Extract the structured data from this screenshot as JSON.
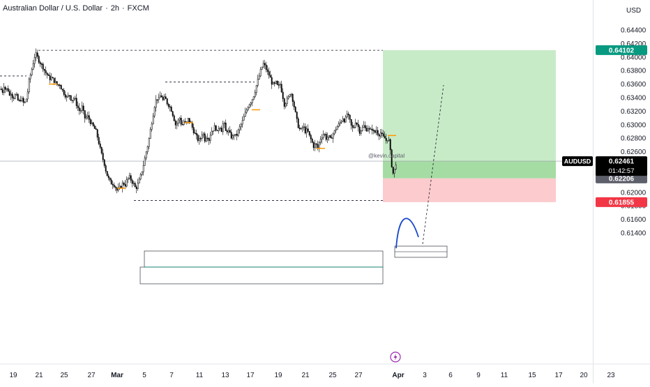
{
  "header": {
    "symbol_name": "Australian Dollar / U.S. Dollar",
    "separator": "·",
    "interval": "2h",
    "exchange": "FXCM"
  },
  "price_scale": {
    "currency": "USD",
    "ticks": [
      "0.64400",
      "0.64200",
      "0.64000",
      "0.63800",
      "0.63600",
      "0.63400",
      "0.63200",
      "0.63000",
      "0.62800",
      "0.62600",
      "0.62400",
      "0.62200",
      "0.62000",
      "0.61800",
      "0.61600",
      "0.61400"
    ],
    "tick_values": [
      0.644,
      0.642,
      0.64,
      0.638,
      0.636,
      0.634,
      0.632,
      0.63,
      0.628,
      0.626,
      0.624,
      0.622,
      0.62,
      0.618,
      0.616,
      0.614
    ]
  },
  "time_axis": {
    "labels": [
      "19",
      "21",
      "25",
      "27",
      "Mar",
      "5",
      "7",
      "11",
      "13",
      "17",
      "19",
      "21",
      "25",
      "27",
      "Apr",
      "3",
      "6",
      "9",
      "11",
      "15",
      "17",
      "20",
      "23"
    ],
    "bold": [
      "Mar",
      "Apr"
    ]
  },
  "badges": {
    "target": {
      "text": "0.64102",
      "value": 0.64102,
      "color": "#089981"
    },
    "current_symbol": {
      "text": "AUDUSD",
      "color": "#000000"
    },
    "current_price": {
      "text": "0.62461",
      "value": 0.62461,
      "color": "#000000"
    },
    "countdown": {
      "text": "01:42:57"
    },
    "entry": {
      "text": "0.62206",
      "value": 0.62206,
      "color": "#5d606b"
    },
    "stop": {
      "text": "0.61855",
      "value": 0.61855,
      "color": "#f23645"
    }
  },
  "watermark": "@kevin.capital",
  "colors": {
    "profit_zone": "#c8ebc7",
    "profit_zone_active": "#a5dca3",
    "loss_zone": "#fccbcd",
    "candle": "#000000",
    "projection_arc": "#1848cc",
    "accent_orange": "#ff9800",
    "events_icon": "#9c27b0"
  },
  "chart_data": {
    "type": "candlestick",
    "instrument": "AUDUSD",
    "interval": "2h",
    "trade_setup": {
      "direction": "long",
      "entry": 0.62206,
      "target": 0.64102,
      "stop": 0.61855,
      "current": 0.62461
    },
    "levels": {
      "swing_high_feb": 0.641,
      "swing_low_mar": 0.6188,
      "resistance_mid": 0.6363,
      "upper_left_dashed": 0.6372
    },
    "close_path": [
      [
        0,
        0.6353
      ],
      [
        3,
        0.6349
      ],
      [
        5,
        0.6358
      ],
      [
        8,
        0.635
      ],
      [
        10,
        0.6355
      ],
      [
        13,
        0.6343
      ],
      [
        15,
        0.6348
      ],
      [
        18,
        0.6339
      ],
      [
        22,
        0.6345
      ],
      [
        26,
        0.6333
      ],
      [
        30,
        0.6339
      ],
      [
        34,
        0.633
      ],
      [
        38,
        0.6341
      ],
      [
        41,
        0.6365
      ],
      [
        45,
        0.6382
      ],
      [
        48,
        0.6397
      ],
      [
        50,
        0.6405
      ],
      [
        52,
        0.6402
      ],
      [
        55,
        0.6395
      ],
      [
        58,
        0.639
      ],
      [
        61,
        0.6385
      ],
      [
        64,
        0.6378
      ],
      [
        67,
        0.6374
      ],
      [
        70,
        0.6368
      ],
      [
        73,
        0.6369
      ],
      [
        76,
        0.6366
      ],
      [
        79,
        0.6362
      ],
      [
        82,
        0.6358
      ],
      [
        85,
        0.636
      ],
      [
        88,
        0.6352
      ],
      [
        91,
        0.6347
      ],
      [
        95,
        0.634
      ],
      [
        99,
        0.6344
      ],
      [
        102,
        0.6336
      ],
      [
        106,
        0.634
      ],
      [
        110,
        0.6327
      ],
      [
        114,
        0.6319
      ],
      [
        117,
        0.6326
      ],
      [
        121,
        0.631
      ],
      [
        125,
        0.6312
      ],
      [
        128,
        0.6306
      ],
      [
        131,
        0.63
      ],
      [
        134,
        0.6296
      ],
      [
        137,
        0.629
      ],
      [
        140,
        0.6278
      ],
      [
        143,
        0.6264
      ],
      [
        146,
        0.6252
      ],
      [
        149,
        0.6242
      ],
      [
        152,
        0.6228
      ],
      [
        155,
        0.622
      ],
      [
        158,
        0.6214
      ],
      [
        161,
        0.6213
      ],
      [
        164,
        0.621
      ],
      [
        167,
        0.6203
      ],
      [
        170,
        0.6205
      ],
      [
        173,
        0.6209
      ],
      [
        176,
        0.6214
      ],
      [
        179,
        0.6211
      ],
      [
        182,
        0.622
      ],
      [
        185,
        0.6222
      ],
      [
        188,
        0.6217
      ],
      [
        191,
        0.6212
      ],
      [
        194,
        0.6205
      ],
      [
        197,
        0.6212
      ],
      [
        200,
        0.622
      ],
      [
        203,
        0.6232
      ],
      [
        206,
        0.6245
      ],
      [
        209,
        0.626
      ],
      [
        212,
        0.6273
      ],
      [
        215,
        0.6292
      ],
      [
        218,
        0.631
      ],
      [
        221,
        0.6328
      ],
      [
        224,
        0.634
      ],
      [
        227,
        0.6337
      ],
      [
        230,
        0.6345
      ],
      [
        233,
        0.6336
      ],
      [
        236,
        0.634
      ],
      [
        239,
        0.6332
      ],
      [
        242,
        0.6328
      ],
      [
        245,
        0.6322
      ],
      [
        248,
        0.6312
      ],
      [
        251,
        0.63
      ],
      [
        254,
        0.6304
      ],
      [
        257,
        0.631
      ],
      [
        260,
        0.6298
      ],
      [
        263,
        0.6305
      ],
      [
        266,
        0.63
      ],
      [
        269,
        0.6308
      ],
      [
        272,
        0.6304
      ],
      [
        275,
        0.6296
      ],
      [
        278,
        0.6288
      ],
      [
        281,
        0.6282
      ],
      [
        284,
        0.6276
      ],
      [
        287,
        0.628
      ],
      [
        290,
        0.629
      ],
      [
        293,
        0.6278
      ],
      [
        296,
        0.6285
      ],
      [
        299,
        0.6278
      ],
      [
        302,
        0.629
      ],
      [
        305,
        0.6293
      ],
      [
        308,
        0.6298
      ],
      [
        311,
        0.6288
      ],
      [
        314,
        0.63
      ],
      [
        317,
        0.6292
      ],
      [
        320,
        0.6305
      ],
      [
        323,
        0.629
      ],
      [
        326,
        0.6292
      ],
      [
        329,
        0.6286
      ],
      [
        332,
        0.628
      ],
      [
        335,
        0.6286
      ],
      [
        338,
        0.6282
      ],
      [
        341,
        0.6291
      ],
      [
        344,
        0.6298
      ],
      [
        347,
        0.6305
      ],
      [
        350,
        0.6314
      ],
      [
        353,
        0.6322
      ],
      [
        356,
        0.633
      ],
      [
        359,
        0.6334
      ],
      [
        362,
        0.634
      ],
      [
        365,
        0.635
      ],
      [
        368,
        0.6362
      ],
      [
        371,
        0.6372
      ],
      [
        374,
        0.6383
      ],
      [
        377,
        0.639
      ],
      [
        380,
        0.6385
      ],
      [
        383,
        0.6377
      ],
      [
        386,
        0.6372
      ],
      [
        389,
        0.6362
      ],
      [
        392,
        0.6358
      ],
      [
        395,
        0.6362
      ],
      [
        398,
        0.6355
      ],
      [
        401,
        0.636
      ],
      [
        404,
        0.6346
      ],
      [
        407,
        0.633
      ],
      [
        410,
        0.6335
      ],
      [
        413,
        0.634
      ],
      [
        416,
        0.635
      ],
      [
        419,
        0.6337
      ],
      [
        422,
        0.6322
      ],
      [
        425,
        0.6306
      ],
      [
        428,
        0.6294
      ],
      [
        431,
        0.6292
      ],
      [
        434,
        0.6298
      ],
      [
        437,
        0.629
      ],
      [
        440,
        0.6292
      ],
      [
        443,
        0.6283
      ],
      [
        446,
        0.6276
      ],
      [
        449,
        0.6268
      ],
      [
        452,
        0.6272
      ],
      [
        455,
        0.6265
      ],
      [
        458,
        0.6278
      ],
      [
        461,
        0.6283
      ],
      [
        464,
        0.6288
      ],
      [
        467,
        0.628
      ],
      [
        470,
        0.6283
      ],
      [
        473,
        0.6278
      ],
      [
        476,
        0.6285
      ],
      [
        479,
        0.629
      ],
      [
        482,
        0.6296
      ],
      [
        485,
        0.63
      ],
      [
        488,
        0.6305
      ],
      [
        491,
        0.631
      ],
      [
        494,
        0.6305
      ],
      [
        497,
        0.6316
      ],
      [
        500,
        0.6309
      ],
      [
        503,
        0.6298
      ],
      [
        506,
        0.6293
      ],
      [
        509,
        0.6305
      ],
      [
        512,
        0.63
      ],
      [
        515,
        0.629
      ],
      [
        518,
        0.6294
      ],
      [
        521,
        0.6298
      ],
      [
        524,
        0.6292
      ],
      [
        527,
        0.6296
      ],
      [
        530,
        0.629
      ],
      [
        533,
        0.6294
      ],
      [
        536,
        0.6287
      ],
      [
        539,
        0.6292
      ],
      [
        542,
        0.6285
      ],
      [
        545,
        0.6288
      ],
      [
        548,
        0.6282
      ],
      [
        551,
        0.628
      ],
      [
        554,
        0.6275
      ],
      [
        556,
        0.6283
      ],
      [
        558,
        0.627
      ],
      [
        560,
        0.625
      ],
      [
        562,
        0.623
      ],
      [
        564,
        0.6226
      ],
      [
        566,
        0.624
      ],
      [
        568,
        0.6246
      ]
    ]
  }
}
